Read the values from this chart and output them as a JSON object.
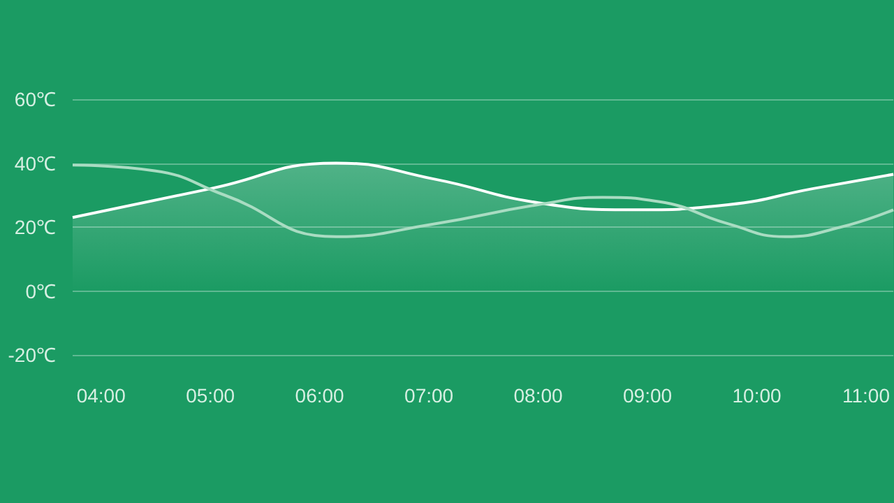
{
  "chart_data": {
    "type": "area",
    "xlim": [
      3.74,
      11.25
    ],
    "xticks": [
      {
        "value": 4,
        "label": "04:00"
      },
      {
        "value": 5,
        "label": "05:00"
      },
      {
        "value": 6,
        "label": "06:00"
      },
      {
        "value": 7,
        "label": "07:00"
      },
      {
        "value": 8,
        "label": "08:00"
      },
      {
        "value": 9,
        "label": "09:00"
      },
      {
        "value": 10,
        "label": "10:00"
      },
      {
        "value": 11,
        "label": "11:00"
      }
    ],
    "ylim": [
      -20,
      60
    ],
    "yticks": [
      {
        "value": -20,
        "label": "-20℃"
      },
      {
        "value": 0,
        "label": "0℃"
      },
      {
        "value": 20,
        "label": "20℃"
      },
      {
        "value": 40,
        "label": "40℃"
      },
      {
        "value": 60,
        "label": "60℃"
      }
    ],
    "grid": "y",
    "marker": "none",
    "series": [
      {
        "color": "#ffffff",
        "x": [
          3.74,
          5,
          6.15,
          7.05,
          8,
          8.85,
          9.74,
          10.51,
          11.25
        ],
        "values": [
          23,
          32,
          40,
          35,
          27.6,
          25.4,
          27,
          32,
          36.5
        ]
      },
      {
        "type": "line",
        "color": "#a9dcc2",
        "x": [
          3.74,
          4.49,
          5.13,
          6.15,
          7.05,
          8,
          8.59,
          9.1,
          9.74,
          10.26,
          10.77,
          11.25
        ],
        "values": [
          39.4,
          37.6,
          30,
          17,
          21,
          27,
          29.3,
          28,
          21,
          17,
          20,
          25.4
        ]
      }
    ]
  }
}
